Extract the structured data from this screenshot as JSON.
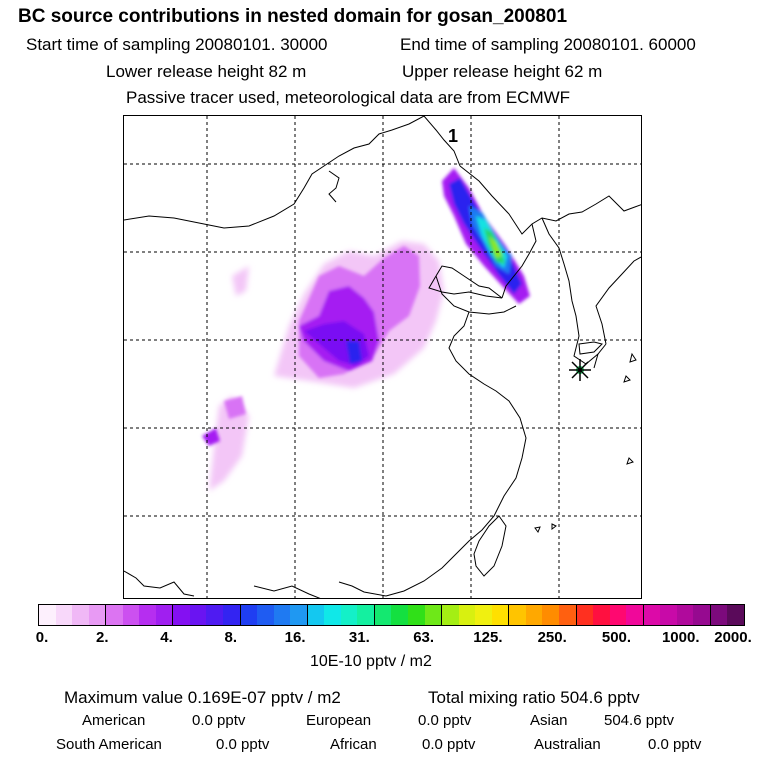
{
  "header": {
    "title": "BC  source contributions in nested domain for gosan_200801",
    "start_time": "Start time of sampling 20080101. 30000",
    "end_time": "End time of sampling 20080101. 60000",
    "lower_release": "Lower release height   82 m",
    "upper_release": "Upper release height   62 m",
    "tracer_note": "Passive tracer used, meteorological data are from ECMWF"
  },
  "map": {
    "corner_label": "1",
    "receptor_marker": "asterisk-star-icon",
    "plume_colors": {
      "light_magenta": "#f3c6f7",
      "magenta": "#d873f5",
      "purple": "#a51ff2",
      "violet": "#7a0ef3",
      "blue": "#2a23ef",
      "azure": "#1f7cf2",
      "cyan": "#18e2e2",
      "green": "#25d66a",
      "lime": "#8ee81c"
    }
  },
  "colorbar": {
    "colors": [
      "#fdf0fd",
      "#f8d8fa",
      "#f0b8f6",
      "#e89af4",
      "#dc74f2",
      "#cc50f0",
      "#b62ef0",
      "#a01ff0",
      "#8410f2",
      "#6a14f2",
      "#4f1bf2",
      "#3324f2",
      "#1f3ef2",
      "#1f5cf2",
      "#1f7af2",
      "#1f98f2",
      "#14c8f0",
      "#10e8e8",
      "#14f0c8",
      "#14f0a0",
      "#14e870",
      "#14e040",
      "#30e018",
      "#6ee818",
      "#a4ee14",
      "#d8f010",
      "#f0f010",
      "#ffe000",
      "#ffc400",
      "#ffa800",
      "#ff8c00",
      "#ff6010",
      "#ff3020",
      "#ff1040",
      "#ff0870",
      "#f0089a",
      "#dc0aa8",
      "#c80aa8",
      "#b00a9c",
      "#960a90",
      "#7c0a7c",
      "#5a0a5a"
    ],
    "tick_labels": [
      "0.",
      "2.",
      "4.",
      "8.",
      "16.",
      "31.",
      "63.",
      "125.",
      "250.",
      "500.",
      "1000.",
      "2000."
    ],
    "units": "10E-10 pptv / m2"
  },
  "summary": {
    "max_value": "Maximum value  0.169E-07 pptv / m2",
    "total_mixing": "Total mixing ratio      504.6 pptv",
    "regions": [
      {
        "name": "American",
        "value": "0.0 pptv"
      },
      {
        "name": "European",
        "value": "0.0 pptv"
      },
      {
        "name": "Asian",
        "value": "504.6 pptv"
      },
      {
        "name": "South American",
        "value": "0.0 pptv"
      },
      {
        "name": "African",
        "value": "0.0 pptv"
      },
      {
        "name": "Australian",
        "value": "0.0 pptv"
      }
    ]
  }
}
